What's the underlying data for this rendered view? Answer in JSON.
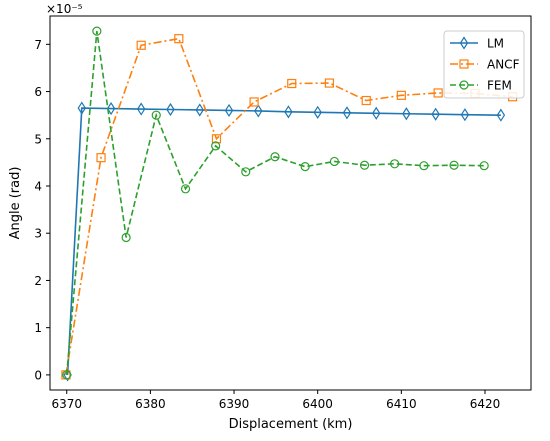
{
  "chart_data": {
    "type": "line",
    "xlabel": "Displacement (km)",
    "ylabel": "Angle (rad)",
    "y_multiplier_label": "×10⁻⁵",
    "xlim": [
      6368.0,
      6425.5
    ],
    "ylim": [
      -0.32,
      7.6
    ],
    "xticks": [
      6370,
      6380,
      6390,
      6400,
      6410,
      6420
    ],
    "yticks": [
      0,
      1,
      2,
      3,
      4,
      5,
      6,
      7
    ],
    "grid": false,
    "legend_position": "top-right",
    "series": [
      {
        "name": "LM",
        "color": "#1f77b4",
        "linestyle": "solid",
        "marker": "thin_diamond",
        "x": [
          6370.1,
          6371.8,
          6375.3,
          6378.9,
          6382.4,
          6385.9,
          6389.4,
          6392.9,
          6396.5,
          6400.0,
          6403.5,
          6407.0,
          6410.6,
          6414.1,
          6417.6,
          6421.9
        ],
        "y": [
          0.0,
          5.65,
          5.64,
          5.63,
          5.62,
          5.61,
          5.6,
          5.59,
          5.57,
          5.56,
          5.55,
          5.54,
          5.53,
          5.52,
          5.51,
          5.5
        ]
      },
      {
        "name": "ANCF",
        "color": "#ff7f0e",
        "linestyle": "dashdot",
        "marker": "square",
        "x": [
          6369.9,
          6374.1,
          6378.9,
          6383.4,
          6387.9,
          6392.4,
          6396.9,
          6401.4,
          6405.8,
          6410.0,
          6414.4,
          6418.8,
          6423.3
        ],
        "y": [
          0.0,
          4.6,
          6.98,
          7.12,
          5.0,
          5.78,
          6.17,
          6.18,
          5.81,
          5.92,
          5.97,
          5.96,
          5.89
        ]
      },
      {
        "name": "FEM",
        "color": "#2ca02c",
        "linestyle": "dashed",
        "marker": "circle",
        "x": [
          6370.0,
          6373.6,
          6377.1,
          6380.7,
          6384.2,
          6387.8,
          6391.4,
          6394.9,
          6398.5,
          6402.0,
          6405.6,
          6409.2,
          6412.7,
          6416.3,
          6419.9
        ],
        "y": [
          0.0,
          7.28,
          2.91,
          5.5,
          3.94,
          4.85,
          4.3,
          4.62,
          4.41,
          4.52,
          4.44,
          4.47,
          4.43,
          4.44,
          4.43
        ]
      }
    ]
  }
}
